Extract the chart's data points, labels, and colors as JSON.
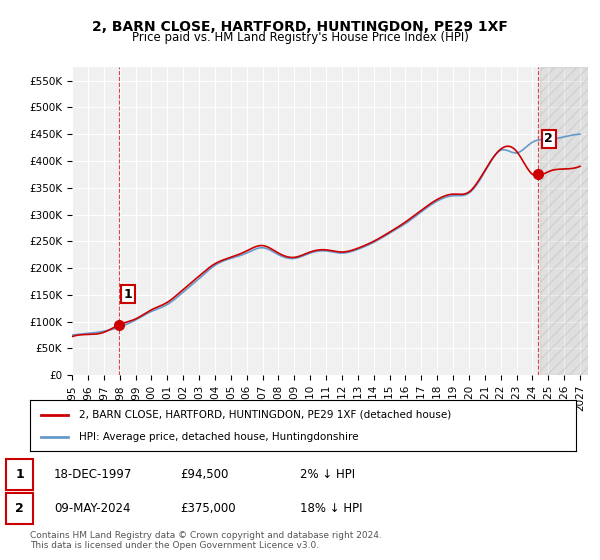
{
  "title": "2, BARN CLOSE, HARTFORD, HUNTINGDON, PE29 1XF",
  "subtitle": "Price paid vs. HM Land Registry's House Price Index (HPI)",
  "ylabel": "",
  "background_color": "#ffffff",
  "plot_bg_color": "#f0f0f0",
  "grid_color": "#ffffff",
  "hpi_color": "#6699cc",
  "price_color": "#cc0000",
  "annotation_color": "#cc0000",
  "ylim": [
    0,
    575000
  ],
  "xlim_start": 1995.0,
  "xlim_end": 2027.5,
  "purchase1": {
    "date_num": 1997.96,
    "price": 94500,
    "label": "1"
  },
  "purchase2": {
    "date_num": 2024.36,
    "price": 375000,
    "label": "2"
  },
  "legend_entry1": "2, BARN CLOSE, HARTFORD, HUNTINGDON, PE29 1XF (detached house)",
  "legend_entry2": "HPI: Average price, detached house, Huntingdonshire",
  "table_row1": [
    "1",
    "18-DEC-1997",
    "£94,500",
    "2% ↓ HPI"
  ],
  "table_row2": [
    "2",
    "09-MAY-2024",
    "£375,000",
    "18% ↓ HPI"
  ],
  "footnote": "Contains HM Land Registry data © Crown copyright and database right 2024.\nThis data is licensed under the Open Government Licence v3.0.",
  "yticks": [
    0,
    50000,
    100000,
    150000,
    200000,
    250000,
    300000,
    350000,
    400000,
    450000,
    500000,
    550000
  ],
  "ytick_labels": [
    "£0",
    "£50K",
    "£100K",
    "£150K",
    "£200K",
    "£250K",
    "£300K",
    "£350K",
    "£400K",
    "£450K",
    "£500K",
    "£550K"
  ],
  "xticks": [
    1995,
    1996,
    1997,
    1998,
    1999,
    2000,
    2001,
    2002,
    2003,
    2004,
    2005,
    2006,
    2007,
    2008,
    2009,
    2010,
    2011,
    2012,
    2013,
    2014,
    2015,
    2016,
    2017,
    2018,
    2019,
    2020,
    2021,
    2022,
    2023,
    2024,
    2025,
    2026,
    2027
  ]
}
